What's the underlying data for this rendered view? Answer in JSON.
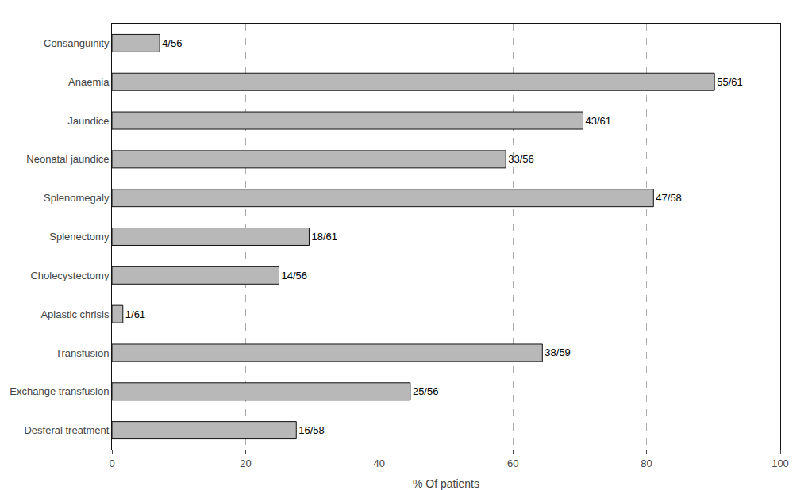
{
  "chart_data": {
    "type": "bar",
    "orientation": "horizontal",
    "categories": [
      "Desferal treatment",
      "Exchange transfusion",
      "Transfusion",
      "Aplastic chrisis",
      "Cholecystectomy",
      "Splenectomy",
      "Splenomegaly",
      "Neonatal jaundice",
      "Jaundice",
      "Anaemia",
      "Consanguinity"
    ],
    "values": [
      27.586206896551722,
      44.642857142857146,
      64.40677966101694,
      1.639344262295082,
      25.0,
      29.508196721311474,
      81.03448275862068,
      58.92857142857143,
      70.49180327868852,
      90.1639344262295,
      7.142857142857143
    ],
    "value_labels": [
      "16/58",
      "25/56",
      "38/59",
      "1/61",
      "14/56",
      "18/61",
      "47/58",
      "33/56",
      "43/61",
      "55/61",
      "4/56"
    ],
    "data_labels": true,
    "color": "#b8b8b8",
    "xlabel": "% Of patients",
    "xlim": [
      0,
      100
    ],
    "xticks": [
      0,
      20,
      40,
      60,
      80,
      100
    ],
    "grid": true
  }
}
